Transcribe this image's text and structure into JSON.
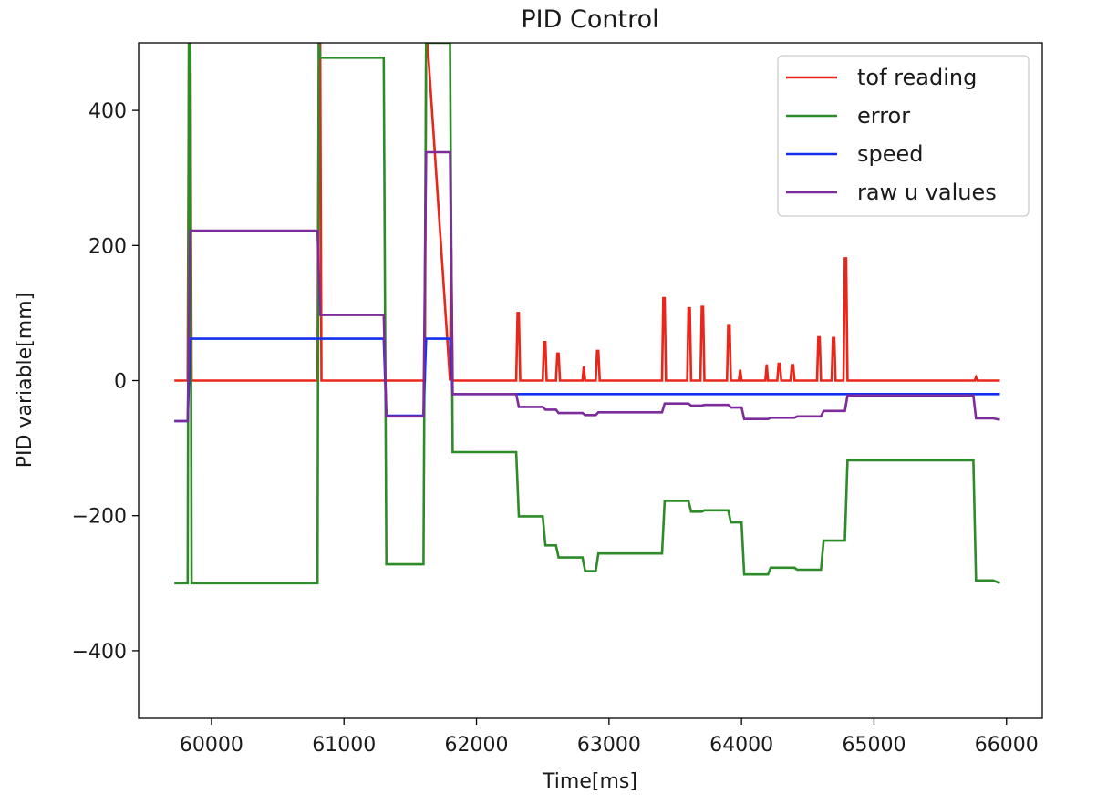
{
  "chart_data": {
    "type": "line",
    "title": "PID Control",
    "xlabel": "Time[ms]",
    "ylabel": "PID variable[mm]",
    "xlim": [
      59450,
      66270
    ],
    "ylim": [
      -500,
      500
    ],
    "xticks": [
      60000,
      61000,
      62000,
      63000,
      64000,
      65000,
      66000
    ],
    "xtick_labels": [
      "60000",
      "61000",
      "62000",
      "63000",
      "64000",
      "65000",
      "66000"
    ],
    "yticks": [
      -400,
      -200,
      0,
      200,
      400
    ],
    "ytick_labels": [
      "−400",
      "−200",
      "0",
      "200",
      "400"
    ],
    "grid": false,
    "legend_position": "top-right",
    "series": [
      {
        "name": "tof reading",
        "color": "#e8261a",
        "x": [
          59720,
          59820,
          59830,
          59840,
          59850,
          60800,
          60810,
          60820,
          60830,
          61610,
          61620,
          61630,
          61800,
          61810,
          61820,
          62300,
          62310,
          62320,
          62330,
          62500,
          62510,
          62520,
          62530,
          62600,
          62610,
          62620,
          62630,
          62800,
          62810,
          62820,
          62900,
          62910,
          62920,
          62930,
          63400,
          63410,
          63420,
          63430,
          63590,
          63600,
          63610,
          63620,
          63690,
          63700,
          63710,
          63720,
          63890,
          63900,
          63910,
          63920,
          63980,
          63990,
          64000,
          64180,
          64190,
          64200,
          64270,
          64280,
          64290,
          64300,
          64370,
          64380,
          64390,
          64400,
          64570,
          64580,
          64590,
          64600,
          64680,
          64690,
          64700,
          64710,
          64770,
          64780,
          64790,
          64800,
          65760,
          65770,
          65780,
          65950
        ],
        "y": [
          0,
          0,
          500,
          500,
          0,
          0,
          500,
          500,
          0,
          0,
          500,
          500,
          0,
          195,
          0,
          0,
          100,
          100,
          0,
          0,
          57,
          57,
          0,
          0,
          40,
          40,
          0,
          0,
          21,
          0,
          0,
          44,
          44,
          0,
          0,
          122,
          122,
          0,
          0,
          107,
          107,
          0,
          0,
          109,
          109,
          0,
          0,
          82,
          82,
          0,
          0,
          16,
          0,
          0,
          24,
          0,
          0,
          25,
          25,
          0,
          0,
          23,
          23,
          0,
          0,
          64,
          64,
          0,
          0,
          63,
          63,
          0,
          0,
          181,
          181,
          0,
          0,
          5,
          0,
          0
        ]
      },
      {
        "name": "error",
        "color": "#2e8b2a",
        "x": [
          59720,
          59820,
          59830,
          59840,
          59850,
          60800,
          60810,
          60820,
          61300,
          61320,
          61600,
          61620,
          61800,
          61820,
          62300,
          62320,
          62500,
          62520,
          62600,
          62620,
          62800,
          62820,
          62900,
          62920,
          63400,
          63420,
          63600,
          63620,
          63700,
          63720,
          63900,
          63920,
          64000,
          64020,
          64200,
          64220,
          64400,
          64420,
          64600,
          64620,
          64780,
          64800,
          65750,
          65770,
          65900,
          65950
        ],
        "y": [
          -300,
          -300,
          500,
          500,
          -300,
          -300,
          500,
          478,
          478,
          -272,
          -272,
          500,
          500,
          -106,
          -106,
          -201,
          -201,
          -244,
          -244,
          -262,
          -262,
          -282,
          -282,
          -256,
          -256,
          -178,
          -178,
          -194,
          -194,
          -192,
          -192,
          -210,
          -210,
          -287,
          -287,
          -277,
          -277,
          -280,
          -280,
          -237,
          -237,
          -118,
          -118,
          -296,
          -296,
          -300
        ]
      },
      {
        "name": "speed",
        "color": "#1330f0",
        "x": [
          59720,
          59820,
          59840,
          61300,
          61320,
          61600,
          61620,
          61800,
          61820,
          65950
        ],
        "y": [
          -60,
          -60,
          62,
          62,
          -52,
          -52,
          62,
          62,
          -20,
          -20
        ]
      },
      {
        "name": "raw u values",
        "color": "#7d2c9c",
        "x": [
          59720,
          59820,
          59840,
          60800,
          60820,
          61300,
          61320,
          61600,
          61620,
          61800,
          61820,
          62300,
          62320,
          62500,
          62520,
          62600,
          62620,
          62800,
          62820,
          62900,
          62920,
          63400,
          63420,
          63600,
          63620,
          63700,
          63720,
          63900,
          63920,
          64000,
          64020,
          64200,
          64220,
          64400,
          64420,
          64600,
          64620,
          64780,
          64800,
          65750,
          65770,
          65900,
          65950
        ],
        "y": [
          -60,
          -60,
          222,
          222,
          97,
          97,
          -53,
          -53,
          338,
          338,
          -20,
          -20,
          -39,
          -39,
          -43,
          -43,
          -48,
          -48,
          -51,
          -51,
          -47,
          -47,
          -34,
          -34,
          -37,
          -37,
          -36,
          -36,
          -40,
          -40,
          -57,
          -57,
          -55,
          -55,
          -53,
          -53,
          -45,
          -45,
          -22,
          -22,
          -56,
          -56,
          -58
        ]
      }
    ]
  }
}
